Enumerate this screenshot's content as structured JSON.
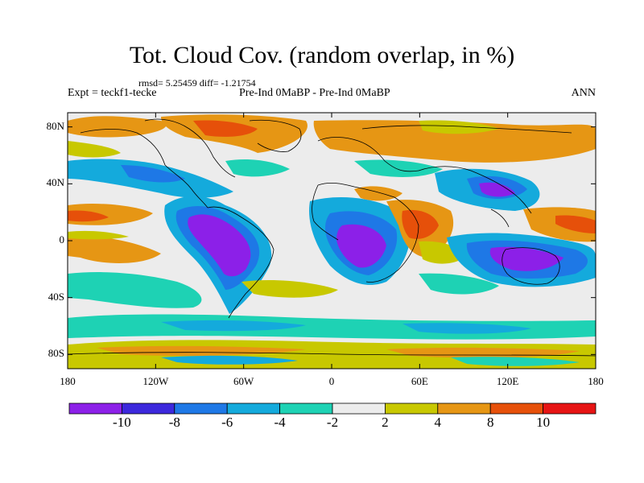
{
  "header": {
    "title": "Tot. Cloud Cov. (random overlap, in %)",
    "stats": "rmsd= 5.25459 diff= -1.21754",
    "expt": "Expt = teckf1-tecke",
    "comparison": "Pre-Ind 0MaBP - Pre-Ind 0MaBP",
    "season": "ANN"
  },
  "map": {
    "projection": "equirectangular",
    "lon_range": [
      -180,
      180
    ],
    "lat_range": [
      -90,
      90
    ],
    "lat_ticks": [
      "80N",
      "40N",
      "0",
      "40S",
      "80S"
    ],
    "lon_ticks": [
      "180",
      "120W",
      "60W",
      "0",
      "60E",
      "120E",
      "180"
    ]
  },
  "colorbar": {
    "labels": [
      "-10",
      "-8",
      "-6",
      "-4",
      "-2",
      "2",
      "4",
      "8",
      "10"
    ],
    "colors": [
      "#8c20e8",
      "#3c28dc",
      "#1e78e6",
      "#14aadc",
      "#1ed2b4",
      "#ececec",
      "#c8c800",
      "#e69614",
      "#e6500a",
      "#e61414"
    ]
  }
}
